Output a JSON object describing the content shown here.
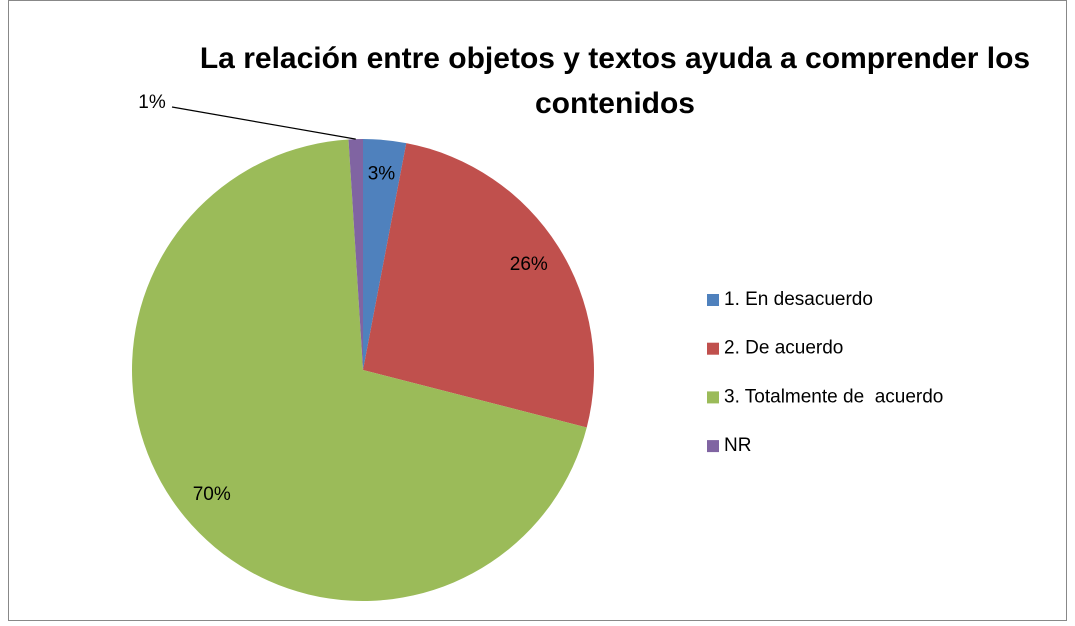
{
  "chart_data": {
    "type": "pie",
    "title": "La relación entre objetos y textos ayuda a comprender los contenidos",
    "categories": [
      "1. En desacuerdo",
      "2. De acuerdo",
      "3. Totalmente de  acuerdo",
      "NR"
    ],
    "values": [
      3,
      26,
      70,
      1
    ],
    "value_labels": [
      "3%",
      "26%",
      "70%",
      "1%"
    ],
    "colors": [
      "#4f81bd",
      "#c0504d",
      "#9bbb59",
      "#8064a2"
    ],
    "legend": "right"
  }
}
